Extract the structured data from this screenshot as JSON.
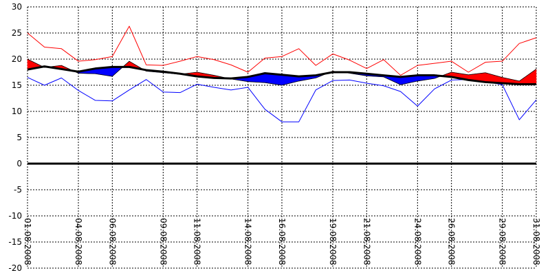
{
  "chart_data": {
    "type": "area",
    "title": "",
    "xlabel": "",
    "ylabel": "",
    "ylim": [
      -20,
      30
    ],
    "y_ticks": [
      30,
      25,
      20,
      15,
      10,
      5,
      0,
      -5,
      -10,
      -15,
      -20
    ],
    "x_tick_labels": [
      {
        "day": 1,
        "label": "01.08.2008"
      },
      {
        "day": 4,
        "label": "04.08.2008"
      },
      {
        "day": 6,
        "label": "06.08.2008"
      },
      {
        "day": 9,
        "label": "09.08.2008"
      },
      {
        "day": 11,
        "label": "11.08.2008"
      },
      {
        "day": 14,
        "label": "14.08.2008"
      },
      {
        "day": 16,
        "label": "16.08.2008"
      },
      {
        "day": 19,
        "label": "19.08.2008"
      },
      {
        "day": 21,
        "label": "21.08.2008"
      },
      {
        "day": 24,
        "label": "24.08.2008"
      },
      {
        "day": 26,
        "label": "26.08.2008"
      },
      {
        "day": 29,
        "label": "29.08.2008"
      },
      {
        "day": 31,
        "label": "31.08.2008"
      }
    ],
    "grid": true,
    "x": [
      "01.08.2008",
      "02.08.2008",
      "03.08.2008",
      "04.08.2008",
      "05.08.2008",
      "06.08.2008",
      "07.08.2008",
      "08.08.2008",
      "09.08.2008",
      "10.08.2008",
      "11.08.2008",
      "12.08.2008",
      "13.08.2008",
      "14.08.2008",
      "15.08.2008",
      "16.08.2008",
      "17.08.2008",
      "18.08.2008",
      "19.08.2008",
      "20.08.2008",
      "21.08.2008",
      "22.08.2008",
      "23.08.2008",
      "24.08.2008",
      "25.08.2008",
      "26.08.2008",
      "27.08.2008",
      "28.08.2008",
      "29.08.2008",
      "30.08.2008",
      "31.08.2008"
    ],
    "series": [
      {
        "role": "max",
        "color": "#ff0000",
        "values": [
          25.0,
          22.3,
          22.0,
          19.6,
          19.9,
          20.5,
          26.3,
          18.9,
          18.8,
          19.6,
          20.5,
          19.9,
          18.9,
          17.5,
          20.2,
          20.5,
          22.0,
          18.8,
          21.0,
          19.8,
          18.2,
          19.9,
          16.9,
          18.8,
          19.2,
          19.6,
          17.5,
          19.4,
          19.6,
          23.0,
          24.1
        ]
      },
      {
        "role": "mean",
        "color": "#ff0000",
        "values": [
          20.0,
          18.4,
          18.8,
          17.3,
          17.2,
          16.7,
          19.6,
          17.7,
          17.4,
          17.1,
          17.5,
          16.9,
          16.2,
          15.7,
          15.5,
          15.0,
          15.8,
          16.4,
          17.7,
          17.3,
          16.8,
          16.6,
          15.1,
          15.8,
          16.3,
          17.5,
          17.0,
          17.4,
          16.5,
          15.8,
          18.1
        ]
      },
      {
        "role": "normal",
        "color": "#000000",
        "values": [
          18.0,
          18.6,
          18.1,
          17.6,
          18.2,
          18.5,
          18.5,
          17.9,
          17.6,
          17.2,
          16.7,
          16.4,
          16.3,
          16.6,
          17.3,
          17.0,
          16.7,
          16.9,
          17.5,
          17.5,
          17.2,
          16.9,
          16.6,
          16.9,
          16.9,
          16.6,
          16.0,
          15.6,
          15.4,
          15.2,
          15.2
        ]
      },
      {
        "role": "min",
        "color": "#0000ff",
        "values": [
          16.5,
          15.0,
          16.4,
          14.0,
          12.1,
          12.0,
          14.1,
          16.1,
          13.7,
          13.6,
          15.2,
          14.6,
          14.1,
          14.6,
          10.4,
          8.0,
          8.0,
          14.1,
          15.9,
          16.0,
          15.4,
          14.9,
          13.8,
          11.0,
          14.3,
          16.0,
          16.1,
          15.7,
          15.1,
          8.4,
          12.2
        ]
      }
    ],
    "fill_above_normal_color": "#ff0000",
    "fill_below_normal_color": "#0000ff",
    "zero_line_color": "#000000"
  }
}
